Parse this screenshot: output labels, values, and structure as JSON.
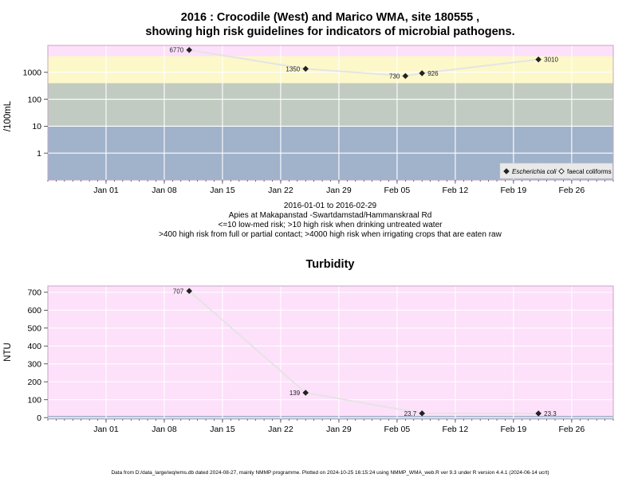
{
  "chart_data": [
    {
      "type": "line",
      "title_line1": "2016 : Crocodile (West) and Marico WMA, site 180555 ,",
      "title_line2": "showing high risk guidelines for indicators of microbial pathogens.",
      "ylabel": "/100mL",
      "y_scale": "log",
      "ylim": [
        0.1,
        10000
      ],
      "yticks": [
        1,
        10,
        100,
        1000
      ],
      "ytick_labels": [
        "1",
        "10",
        "100",
        "1000"
      ],
      "xlim": [
        "2015-12-25",
        "2016-03-02"
      ],
      "xticks": [
        "2016-01-01",
        "2016-01-08",
        "2016-01-15",
        "2016-01-22",
        "2016-01-29",
        "2016-02-05",
        "2016-02-12",
        "2016-02-19",
        "2016-02-26"
      ],
      "xtick_labels": [
        "Jan 01",
        "Jan 08",
        "Jan 15",
        "Jan 22",
        "Jan 29",
        "Feb 05",
        "Feb 12",
        "Feb 19",
        "Feb 26"
      ],
      "grid": true,
      "bands": [
        {
          "from": 0.1,
          "to": 10,
          "color": "#a1b2cb"
        },
        {
          "from": 10,
          "to": 400,
          "color": "#c2cbc1"
        },
        {
          "from": 400,
          "to": 4000,
          "color": "#fcf8c9"
        },
        {
          "from": 4000,
          "to": 10000,
          "color": "#fde0fa"
        }
      ],
      "series": [
        {
          "name": "Escherichia coli",
          "marker": "diamond-filled",
          "x": [
            "2016-01-11",
            "2016-01-25",
            "2016-02-06",
            "2016-02-08",
            "2016-02-22"
          ],
          "values": [
            6770,
            1350,
            730,
            926,
            3010
          ],
          "labels": [
            "6770",
            "1350",
            "730",
            "926",
            "3010"
          ],
          "label_side": [
            "left",
            "left",
            "left",
            "right",
            "right"
          ]
        },
        {
          "name": "faecal coliforms",
          "marker": "diamond-open",
          "x": [],
          "values": []
        }
      ],
      "legend_position": "bottom-right",
      "caption_lines": [
        "2016-01-01 to 2016-02-29",
        "Apies at Makapanstad -Swartdamstad/Hammanskraal Rd",
        "<=10 low-med risk; >10 high risk when drinking untreated water",
        ">400 high risk from full or partial contact; >4000 high risk when irrigating crops that are eaten raw"
      ]
    },
    {
      "type": "line",
      "title": "Turbidity",
      "ylabel": "NTU",
      "ylim": [
        -8,
        735
      ],
      "yticks": [
        0,
        100,
        200,
        300,
        400,
        500,
        600,
        700
      ],
      "ytick_labels": [
        "0",
        "100",
        "200",
        "300",
        "400",
        "500",
        "600",
        "700"
      ],
      "xlim": [
        "2015-12-25",
        "2016-03-02"
      ],
      "xticks": [
        "2016-01-01",
        "2016-01-08",
        "2016-01-15",
        "2016-01-22",
        "2016-01-29",
        "2016-02-05",
        "2016-02-12",
        "2016-02-19",
        "2016-02-26"
      ],
      "xtick_labels": [
        "Jan 01",
        "Jan 08",
        "Jan 15",
        "Jan 22",
        "Jan 29",
        "Feb 05",
        "Feb 12",
        "Feb 19",
        "Feb 26"
      ],
      "grid": true,
      "bands": [
        {
          "from": -8,
          "to": 10,
          "color": "#a1b2cb"
        },
        {
          "from": 10,
          "to": 735,
          "color": "#fde0fa"
        }
      ],
      "series": [
        {
          "marker": "diamond-filled",
          "x": [
            "2016-01-11",
            "2016-01-25",
            "2016-02-08",
            "2016-02-22"
          ],
          "values": [
            707,
            139,
            23.7,
            23.3
          ],
          "labels": [
            "707",
            "139",
            "23.7",
            "23.3"
          ],
          "label_side": [
            "left",
            "left",
            "left",
            "right"
          ]
        }
      ]
    }
  ],
  "footer": "Data from D:/data_large/wq/wms.db dated 2024-08-27, mainly NMMP programme. Plotted on 2024-10-25 16:15:24 using NMMP_WMA_web.R ver 9.3 under R version 4.4.1 (2024-06-14 ucrt)"
}
